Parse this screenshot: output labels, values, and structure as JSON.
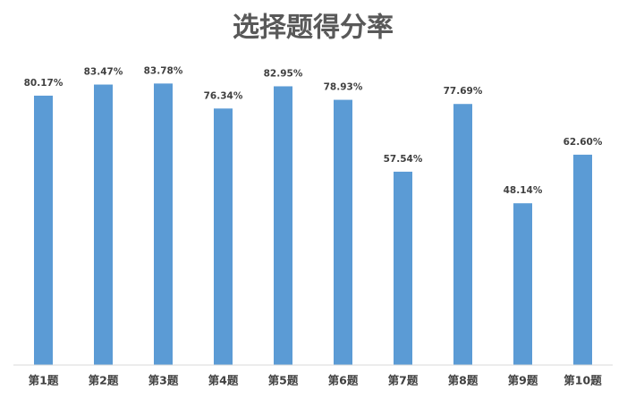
{
  "chart_data": {
    "type": "bar",
    "title": "选择题得分率",
    "categories": [
      "第1题",
      "第2题",
      "第3题",
      "第4题",
      "第5题",
      "第6题",
      "第7题",
      "第8题",
      "第9题",
      "第10题"
    ],
    "values": [
      80.17,
      83.47,
      83.78,
      76.34,
      82.95,
      78.93,
      57.54,
      77.69,
      48.14,
      62.6
    ],
    "value_labels": [
      "80.17%",
      "83.47%",
      "83.78%",
      "76.34%",
      "82.95%",
      "78.93%",
      "57.54%",
      "77.69%",
      "48.14%",
      "62.60%"
    ],
    "color": "#5b9bd5",
    "ylim": [
      0,
      90
    ]
  }
}
